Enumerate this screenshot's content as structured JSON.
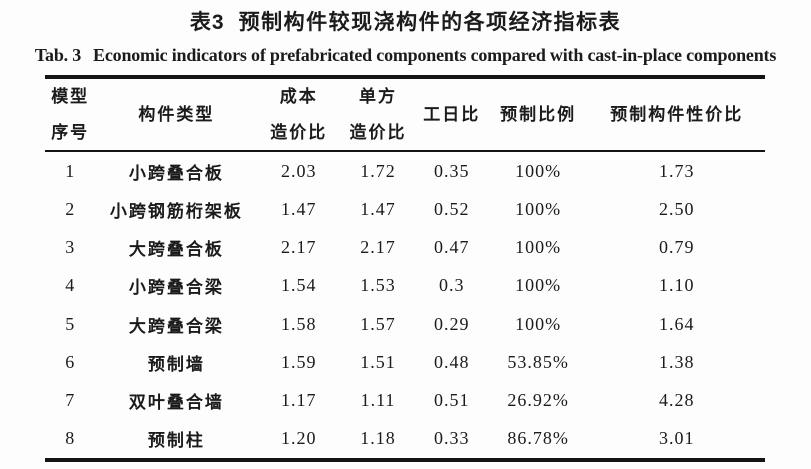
{
  "titles": {
    "zh_label": "表3",
    "zh": "预制构件较现浇构件的各项经济指标表",
    "en_label": "Tab. 3",
    "en": "Economic indicators of prefabricated components compared with cast-in-place components"
  },
  "table": {
    "columns": [
      {
        "id": "model-no",
        "lines": [
          "模型",
          "序号"
        ]
      },
      {
        "id": "component-type",
        "lines": [
          "构件类型"
        ]
      },
      {
        "id": "cost-ratio",
        "lines": [
          "成本",
          "造价比"
        ]
      },
      {
        "id": "unit-cost-ratio",
        "lines": [
          "单方",
          "造价比"
        ]
      },
      {
        "id": "workday-ratio",
        "lines": [
          "工日比"
        ]
      },
      {
        "id": "prefab-ratio",
        "lines": [
          "预制比例"
        ]
      },
      {
        "id": "prefab-value-ratio",
        "lines": [
          "预制构件性价比"
        ]
      }
    ],
    "rows": [
      [
        "1",
        "小跨叠合板",
        "2.03",
        "1.72",
        "0.35",
        "100%",
        "1.73"
      ],
      [
        "2",
        "小跨钢筋桁架板",
        "1.47",
        "1.47",
        "0.52",
        "100%",
        "2.50"
      ],
      [
        "3",
        "大跨叠合板",
        "2.17",
        "2.17",
        "0.47",
        "100%",
        "0.79"
      ],
      [
        "4",
        "小跨叠合梁",
        "1.54",
        "1.53",
        "0.3",
        "100%",
        "1.10"
      ],
      [
        "5",
        "大跨叠合梁",
        "1.58",
        "1.57",
        "0.29",
        "100%",
        "1.64"
      ],
      [
        "6",
        "预制墙",
        "1.59",
        "1.51",
        "0.48",
        "53.85%",
        "1.38"
      ],
      [
        "7",
        "双叶叠合墙",
        "1.17",
        "1.11",
        "0.51",
        "26.92%",
        "4.28"
      ],
      [
        "8",
        "预制柱",
        "1.20",
        "1.18",
        "0.33",
        "86.78%",
        "3.01"
      ]
    ]
  },
  "colors": {
    "background": "#fdfdfd",
    "text": "#1b1b1b",
    "rule": "#141414"
  }
}
